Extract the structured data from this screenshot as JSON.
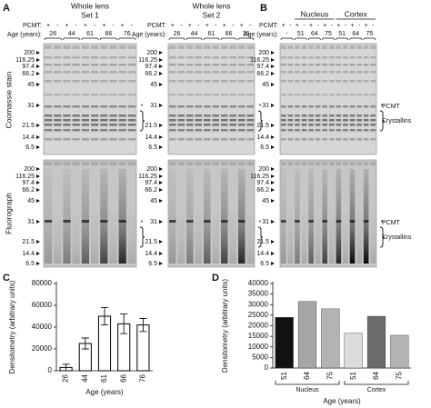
{
  "gels": {
    "markers": [
      "200",
      "116.25",
      "97.4",
      "66.2",
      "45",
      "31",
      "21.5",
      "14.4",
      "6.5"
    ],
    "asterisk": "*",
    "pcmt_label": "PCMT:",
    "age_label": "Age (years):",
    "row_labels": [
      "Coomassie stain",
      "Fluorograph"
    ],
    "A": {
      "label": "A",
      "sets": [
        {
          "title": [
            "Whole lens",
            "Set 1"
          ],
          "signs": [
            "+",
            "-",
            "+",
            "-",
            "+",
            "-",
            "+",
            "-",
            "+",
            "-"
          ],
          "ages": [
            "26",
            "44",
            "61",
            "66",
            "76"
          ]
        },
        {
          "title": [
            "Whole lens",
            "Set 2"
          ],
          "signs": [
            "+",
            "-",
            "+",
            "-",
            "+",
            "-",
            "+",
            "-",
            "+",
            "-"
          ],
          "ages": [
            "26",
            "44",
            "61",
            "66",
            "76"
          ]
        }
      ]
    },
    "B": {
      "label": "B",
      "groups": [
        "Nucleus",
        "Cortex"
      ],
      "signs": [
        "+",
        "-",
        "+",
        "-",
        "+",
        "-",
        "+",
        "-",
        "+",
        "-",
        "+",
        "-",
        "+",
        "-"
      ],
      "ages": [
        "-",
        "51",
        "64",
        "75",
        "51",
        "64",
        "75"
      ],
      "band_labels": [
        "PCMT",
        "Crystallins"
      ]
    }
  },
  "chart_data": [
    {
      "type": "bar",
      "label": "C",
      "ylabel": "Densitometry (arbitrary units)",
      "xlabel": "Age (years)",
      "categories": [
        "26",
        "44",
        "61",
        "66",
        "76"
      ],
      "values": [
        3000,
        25000,
        50000,
        43000,
        42000
      ],
      "errors": [
        3000,
        5000,
        8000,
        9000,
        6000
      ],
      "color": "#ffffff",
      "edgecolor": "#000000",
      "ylim": [
        0,
        80000
      ],
      "yticks": [
        0,
        20000,
        40000,
        60000,
        80000
      ]
    },
    {
      "type": "bar",
      "label": "D",
      "ylabel": "Densitometry (arbitrary units)",
      "xlabel": "Age (years)",
      "categories": [
        "51",
        "64",
        "75",
        "51",
        "64",
        "75"
      ],
      "values": [
        24000,
        31500,
        28000,
        16500,
        24500,
        15500
      ],
      "colors": [
        "#111111",
        "#a6a6a6",
        "#b3b3b3",
        "#dcdcdc",
        "#6b6b6b",
        "#b3b3b3"
      ],
      "groups": [
        "Nucleus",
        "Cortex"
      ],
      "ylim": [
        0,
        40000
      ],
      "yticks": [
        0,
        5000,
        10000,
        15000,
        20000,
        25000,
        30000,
        35000,
        40000
      ]
    }
  ]
}
